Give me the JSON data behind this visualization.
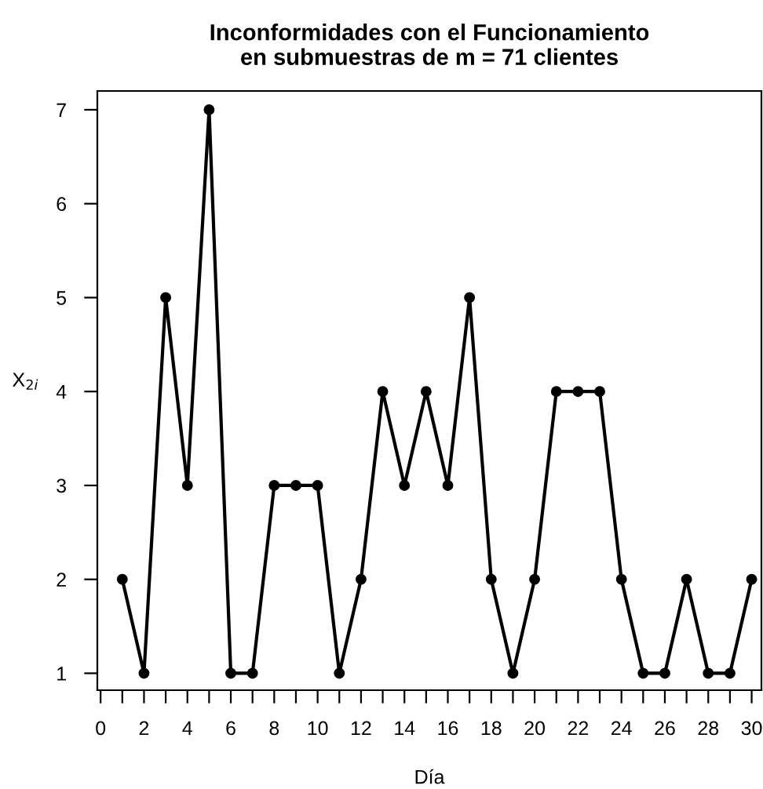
{
  "chart_data": {
    "type": "line",
    "title": "Inconformidades con el Funcionamiento\nen submuestras de m = 71 clientes",
    "xlabel": "Día",
    "ylabel": "X$_{2i}$",
    "x": [
      1,
      2,
      3,
      4,
      5,
      6,
      7,
      8,
      9,
      10,
      11,
      12,
      13,
      14,
      15,
      16,
      17,
      18,
      19,
      20,
      21,
      22,
      23,
      24,
      25,
      26,
      27,
      28,
      29,
      30
    ],
    "series": [
      {
        "color": "#000000",
        "values": [
          2,
          1,
          5,
          3,
          7,
          1,
          1,
          3,
          3,
          3,
          1,
          2,
          4,
          3,
          4,
          3,
          5,
          2,
          1,
          2,
          4,
          4,
          4,
          2,
          1,
          1,
          2,
          1,
          1,
          2
        ]
      }
    ],
    "xlim": [
      -0.15,
      30.45
    ],
    "ylim": [
      0.82,
      7.2
    ],
    "xticks": [
      0,
      {
        "value": 1,
        "label": null
      },
      2,
      {
        "value": 3,
        "label": null
      },
      4,
      {
        "value": 5,
        "label": null
      },
      6,
      {
        "value": 7,
        "label": null
      },
      8,
      {
        "value": 9,
        "label": null
      },
      10,
      {
        "value": 11,
        "label": null
      },
      12,
      {
        "value": 13,
        "label": null
      },
      14,
      {
        "value": 15,
        "label": null
      },
      16,
      {
        "value": 17,
        "label": null
      },
      18,
      {
        "value": 19,
        "label": null
      },
      20,
      {
        "value": 21,
        "label": null
      },
      22,
      {
        "value": 23,
        "label": null
      },
      24,
      {
        "value": 25,
        "label": null
      },
      26,
      {
        "value": 27,
        "label": null
      },
      28,
      {
        "value": 29,
        "label": null
      },
      30
    ],
    "yticks": [
      1,
      2,
      3,
      4,
      5,
      6,
      7
    ],
    "marker": "circle",
    "line_style": "solid",
    "grid": false,
    "legend": false
  }
}
